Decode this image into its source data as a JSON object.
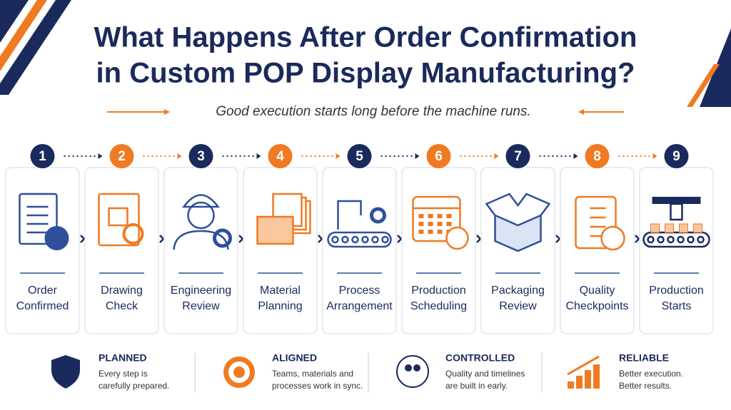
{
  "header": {
    "title_lines": [
      "What Happens After Order Confirmation",
      "in Custom POP Display Manufacturing?"
    ],
    "subtitle": "Good execution starts long before the machine runs."
  },
  "steps": [
    {
      "number": 1,
      "label_lines": [
        "Order",
        "Confirmed"
      ]
    },
    {
      "number": 2,
      "label_lines": [
        "Drawing",
        "Check"
      ]
    },
    {
      "number": 3,
      "label_lines": [
        "Engineering",
        "Review"
      ]
    },
    {
      "number": 4,
      "label_lines": [
        "Material",
        "Planning"
      ]
    },
    {
      "number": 5,
      "label_lines": [
        "Process",
        "Arrangement"
      ]
    },
    {
      "number": 6,
      "label_lines": [
        "Production",
        "Scheduling"
      ]
    },
    {
      "number": 7,
      "label_lines": [
        "Packaging",
        "Review"
      ]
    },
    {
      "number": 8,
      "label_lines": [
        "Quality",
        "Checkpoints"
      ]
    },
    {
      "number": 9,
      "label_lines": [
        "Production",
        "Starts"
      ]
    }
  ],
  "features": [
    {
      "title": "PLANNED",
      "text_lines": [
        "Every step is",
        "carefully prepared."
      ]
    },
    {
      "title": "ALIGNED",
      "text_lines": [
        "Teams, materials and",
        "processes work in sync."
      ]
    },
    {
      "title": "CONTROLLED",
      "text_lines": [
        "Quality and timelines",
        "are built in early."
      ]
    },
    {
      "title": "RELIABLE",
      "text_lines": [
        "Better execution.",
        "Better results."
      ]
    }
  ]
}
